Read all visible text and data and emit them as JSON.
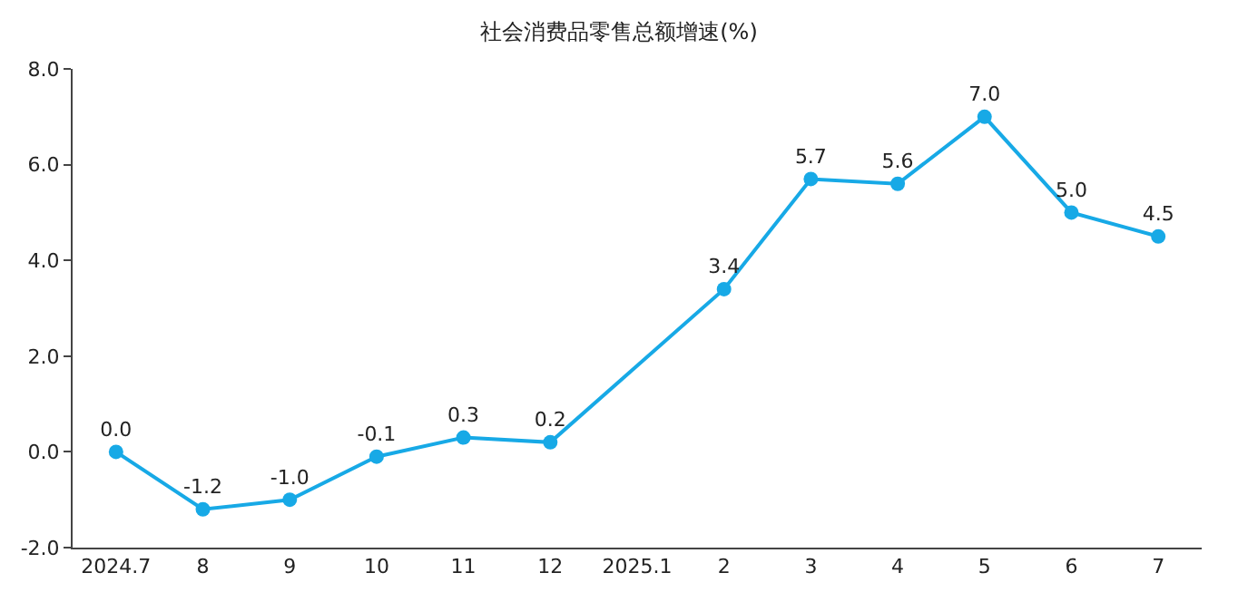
{
  "chart_data": {
    "type": "line",
    "title": "社会消费品零售总额增速(%)",
    "categories": [
      "2024.7",
      "8",
      "9",
      "10",
      "11",
      "12",
      "2025.1",
      "2",
      "3",
      "4",
      "5",
      "6",
      "7"
    ],
    "series": [
      {
        "color": "#17a9e6",
        "values": [
          0.0,
          -1.2,
          -1.0,
          -0.1,
          0.3,
          0.2,
          null,
          3.4,
          5.7,
          5.6,
          7.0,
          5.0,
          4.5
        ],
        "value_labels": [
          "0.0",
          "-1.2",
          "-1.0",
          "-0.1",
          "0.3",
          "0.2",
          null,
          "3.4",
          "5.7",
          "5.6",
          "7.0",
          "5.0",
          "4.5"
        ]
      }
    ],
    "ylim": [
      -2,
      8
    ],
    "yticks": [
      {
        "value": -2,
        "label": "-2.0"
      },
      {
        "value": 0,
        "label": "0.0"
      },
      {
        "value": 2,
        "label": "2.0"
      },
      {
        "value": 4,
        "label": "4.0"
      },
      {
        "value": 6,
        "label": "6.0"
      },
      {
        "value": 8,
        "label": "8.0"
      }
    ],
    "legend": false,
    "marker": "circle",
    "line_style": "solid"
  }
}
